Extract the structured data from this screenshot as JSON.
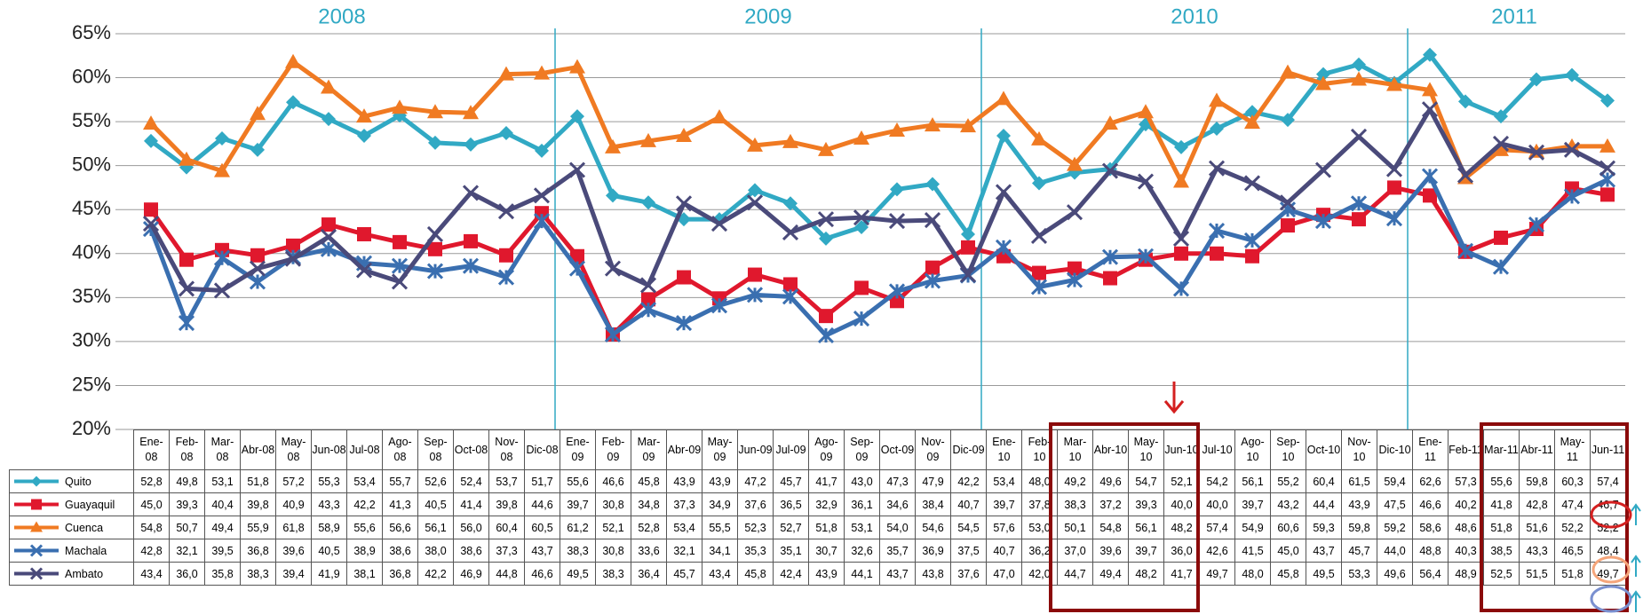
{
  "chart_data": {
    "type": "line",
    "year_labels": [
      "2008",
      "2009",
      "2010",
      "2011"
    ],
    "categories": [
      "Ene-08",
      "Feb-08",
      "Mar-08",
      "Abr-08",
      "May-08",
      "Jun-08",
      "Jul-08",
      "Ago-08",
      "Sep-08",
      "Oct-08",
      "Nov-08",
      "Dic-08",
      "Ene-09",
      "Feb-09",
      "Mar-09",
      "Abr-09",
      "May-09",
      "Jun-09",
      "Jul-09",
      "Ago-09",
      "Sep-09",
      "Oct-09",
      "Nov-09",
      "Dic-09",
      "Ene-10",
      "Feb-10",
      "Mar-10",
      "Abr-10",
      "May-10",
      "Jun-10",
      "Jul-10",
      "Ago-10",
      "Sep-10",
      "Oct-10",
      "Nov-10",
      "Dic-10",
      "Ene-11",
      "Feb-11",
      "Mar-11",
      "Abr-11",
      "May-11",
      "Jun-11"
    ],
    "ylim": [
      20,
      65
    ],
    "yticks": [
      {
        "value": 20,
        "label": "20%"
      },
      {
        "value": 25,
        "label": "25%"
      },
      {
        "value": 30,
        "label": "30%"
      },
      {
        "value": 35,
        "label": "35%"
      },
      {
        "value": 40,
        "label": "40%"
      },
      {
        "value": 45,
        "label": "45%"
      },
      {
        "value": 50,
        "label": "50%"
      },
      {
        "value": 55,
        "label": "55%"
      },
      {
        "value": 60,
        "label": "60%"
      },
      {
        "value": 65,
        "label": "65%"
      }
    ],
    "grid": true,
    "series": [
      {
        "name": "Quito",
        "color": "#31a9c4",
        "marker": "diamond",
        "values": [
          52.8,
          49.8,
          53.1,
          51.8,
          57.2,
          55.3,
          53.4,
          55.7,
          52.6,
          52.4,
          53.7,
          51.7,
          55.6,
          46.6,
          45.8,
          43.9,
          43.9,
          47.2,
          45.7,
          41.7,
          43.0,
          47.3,
          47.9,
          42.2,
          53.4,
          48.0,
          49.2,
          49.6,
          54.7,
          52.1,
          54.2,
          56.1,
          55.2,
          60.4,
          61.5,
          59.4,
          62.6,
          57.3,
          55.6,
          59.8,
          60.3,
          57.4
        ],
        "value_labels": [
          "52,8",
          "49,8",
          "53,1",
          "51,8",
          "57,2",
          "55,3",
          "53,4",
          "55,7",
          "52,6",
          "52,4",
          "53,7",
          "51,7",
          "55,6",
          "46,6",
          "45,8",
          "43,9",
          "43,9",
          "47,2",
          "45,7",
          "41,7",
          "43,0",
          "47,3",
          "47,9",
          "42,2",
          "53,4",
          "48,0",
          "49,2",
          "49,6",
          "54,7",
          "52,1",
          "54,2",
          "56,1",
          "55,2",
          "60,4",
          "61,5",
          "59,4",
          "62,6",
          "57,3",
          "55,6",
          "59,8",
          "60,3",
          "57,4"
        ]
      },
      {
        "name": "Guayaquil",
        "color": "#e0182d",
        "marker": "square",
        "values": [
          45.0,
          39.3,
          40.4,
          39.8,
          40.9,
          43.3,
          42.2,
          41.3,
          40.5,
          41.4,
          39.8,
          44.6,
          39.7,
          30.8,
          34.8,
          37.3,
          34.9,
          37.6,
          36.5,
          32.9,
          36.1,
          34.6,
          38.4,
          40.7,
          39.7,
          37.8,
          38.3,
          37.2,
          39.3,
          40.0,
          40.0,
          39.7,
          43.2,
          44.4,
          43.9,
          47.5,
          46.6,
          40.2,
          41.8,
          42.8,
          47.4,
          46.7
        ],
        "value_labels": [
          "45,0",
          "39,3",
          "40,4",
          "39,8",
          "40,9",
          "43,3",
          "42,2",
          "41,3",
          "40,5",
          "41,4",
          "39,8",
          "44,6",
          "39,7",
          "30,8",
          "34,8",
          "37,3",
          "34,9",
          "37,6",
          "36,5",
          "32,9",
          "36,1",
          "34,6",
          "38,4",
          "40,7",
          "39,7",
          "37,8",
          "38,3",
          "37,2",
          "39,3",
          "40,0",
          "40,0",
          "39,7",
          "43,2",
          "44,4",
          "43,9",
          "47,5",
          "46,6",
          "40,2",
          "41,8",
          "42,8",
          "47,4",
          "46,7"
        ]
      },
      {
        "name": "Cuenca",
        "color": "#f07a22",
        "marker": "triangle",
        "values": [
          54.8,
          50.7,
          49.4,
          55.9,
          61.8,
          58.9,
          55.6,
          56.6,
          56.1,
          56.0,
          60.4,
          60.5,
          61.2,
          52.1,
          52.8,
          53.4,
          55.5,
          52.3,
          52.7,
          51.8,
          53.1,
          54.0,
          54.6,
          54.5,
          57.6,
          53.0,
          50.1,
          54.8,
          56.1,
          48.2,
          57.4,
          54.9,
          60.6,
          59.3,
          59.8,
          59.2,
          58.6,
          48.6,
          51.8,
          51.6,
          52.2,
          52.2
        ],
        "value_labels": [
          "54,8",
          "50,7",
          "49,4",
          "55,9",
          "61,8",
          "58,9",
          "55,6",
          "56,6",
          "56,1",
          "56,0",
          "60,4",
          "60,5",
          "61,2",
          "52,1",
          "52,8",
          "53,4",
          "55,5",
          "52,3",
          "52,7",
          "51,8",
          "53,1",
          "54,0",
          "54,6",
          "54,5",
          "57,6",
          "53,0",
          "50,1",
          "54,8",
          "56,1",
          "48,2",
          "57,4",
          "54,9",
          "60,6",
          "59,3",
          "59,8",
          "59,2",
          "58,6",
          "48,6",
          "51,8",
          "51,6",
          "52,2",
          "52,2"
        ]
      },
      {
        "name": "Machala",
        "color": "#3a6fb0",
        "marker": "star",
        "values": [
          42.8,
          32.1,
          39.5,
          36.8,
          39.6,
          40.5,
          38.9,
          38.6,
          38.0,
          38.6,
          37.3,
          43.7,
          38.3,
          30.8,
          33.6,
          32.1,
          34.1,
          35.3,
          35.1,
          30.7,
          32.6,
          35.7,
          36.9,
          37.5,
          40.7,
          36.2,
          37.0,
          39.6,
          39.7,
          36.0,
          42.6,
          41.5,
          45.0,
          43.7,
          45.7,
          44.0,
          48.8,
          40.3,
          38.5,
          43.3,
          46.5,
          48.4
        ],
        "value_labels": [
          "42,8",
          "32,1",
          "39,5",
          "36,8",
          "39,6",
          "40,5",
          "38,9",
          "38,6",
          "38,0",
          "38,6",
          "37,3",
          "43,7",
          "38,3",
          "30,8",
          "33,6",
          "32,1",
          "34,1",
          "35,3",
          "35,1",
          "30,7",
          "32,6",
          "35,7",
          "36,9",
          "37,5",
          "40,7",
          "36,2",
          "37,0",
          "39,6",
          "39,7",
          "36,0",
          "42,6",
          "41,5",
          "45,0",
          "43,7",
          "45,7",
          "44,0",
          "48,8",
          "40,3",
          "38,5",
          "43,3",
          "46,5",
          "48,4"
        ]
      },
      {
        "name": "Ambato",
        "color": "#4a4a7a",
        "marker": "x",
        "values": [
          43.4,
          36.0,
          35.8,
          38.3,
          39.4,
          41.9,
          38.1,
          36.8,
          42.2,
          46.9,
          44.8,
          46.6,
          49.5,
          38.3,
          36.4,
          45.7,
          43.4,
          45.8,
          42.4,
          43.9,
          44.1,
          43.7,
          43.8,
          37.6,
          47.0,
          42.0,
          44.7,
          49.4,
          48.2,
          41.7,
          49.7,
          48.0,
          45.8,
          49.5,
          53.3,
          49.6,
          56.4,
          48.9,
          52.5,
          51.5,
          51.8,
          49.7
        ],
        "value_labels": [
          "43,4",
          "36,0",
          "35,8",
          "38,3",
          "39,4",
          "41,9",
          "38,1",
          "36,8",
          "42,2",
          "46,9",
          "44,8",
          "46,6",
          "49,5",
          "38,3",
          "36,4",
          "45,7",
          "43,4",
          "45,8",
          "42,4",
          "43,9",
          "44,1",
          "43,7",
          "43,8",
          "37,6",
          "47,0",
          "42,0",
          "44,7",
          "49,4",
          "48,2",
          "41,7",
          "49,7",
          "48,0",
          "45,8",
          "49,5",
          "53,3",
          "49,6",
          "56,4",
          "48,9",
          "52,5",
          "51,5",
          "51,8",
          "49,7"
        ]
      }
    ]
  }
}
